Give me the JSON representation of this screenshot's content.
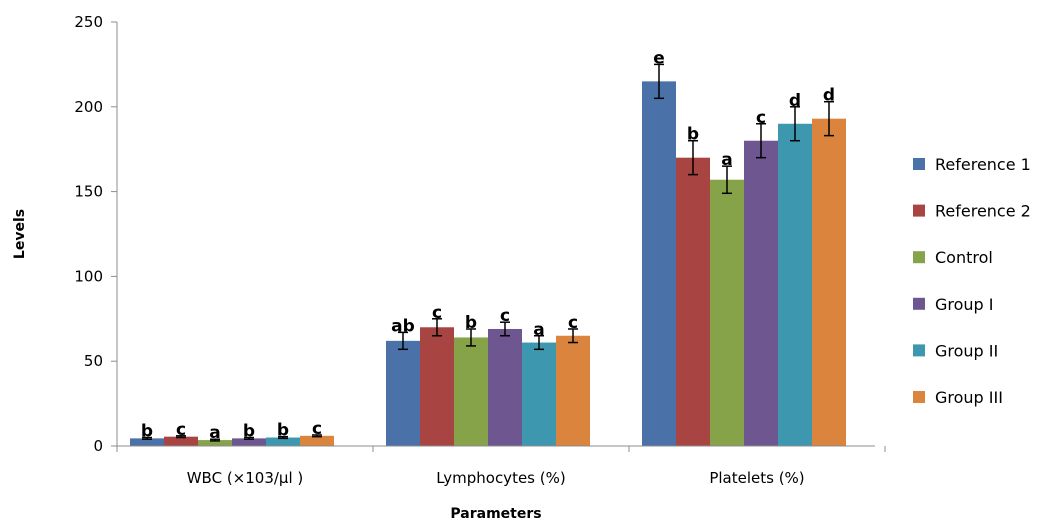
{
  "chart_data": {
    "type": "bar",
    "title": "",
    "xlabel": "Parameters",
    "ylabel": "Levels",
    "ylim": [
      0,
      250
    ],
    "yticks": [
      0,
      50,
      100,
      150,
      200,
      250
    ],
    "grid": false,
    "legend_position": "right",
    "categories": [
      "WBC (×103/µl )",
      "Lymphocytes (%)",
      "Platelets (%)"
    ],
    "series": [
      {
        "name": "Reference 1",
        "color": "#4A72A8",
        "values": [
          4.5,
          62,
          215
        ],
        "errors": [
          0.5,
          5,
          10
        ],
        "labels": [
          "b",
          "ab",
          "e"
        ]
      },
      {
        "name": "Reference 2",
        "color": "#A84442",
        "values": [
          5.5,
          70,
          170
        ],
        "errors": [
          0.5,
          5,
          10
        ],
        "labels": [
          "c",
          "c",
          "b"
        ]
      },
      {
        "name": "Control",
        "color": "#86A34A",
        "values": [
          3.5,
          64,
          157
        ],
        "errors": [
          0.5,
          5,
          8
        ],
        "labels": [
          "a",
          "b",
          "a"
        ]
      },
      {
        "name": "Group I",
        "color": "#6E5690",
        "values": [
          4.5,
          69,
          180
        ],
        "errors": [
          0.5,
          4,
          10
        ],
        "labels": [
          "b",
          "c",
          "c"
        ]
      },
      {
        "name": "Group II",
        "color": "#3D98AF",
        "values": [
          5,
          61,
          190
        ],
        "errors": [
          0.5,
          4,
          10
        ],
        "labels": [
          "b",
          "a",
          "d"
        ]
      },
      {
        "name": "Group III",
        "color": "#DB843E",
        "values": [
          6,
          65,
          193
        ],
        "errors": [
          0.5,
          4,
          10
        ],
        "labels": [
          "c",
          "c",
          "d"
        ]
      }
    ]
  }
}
